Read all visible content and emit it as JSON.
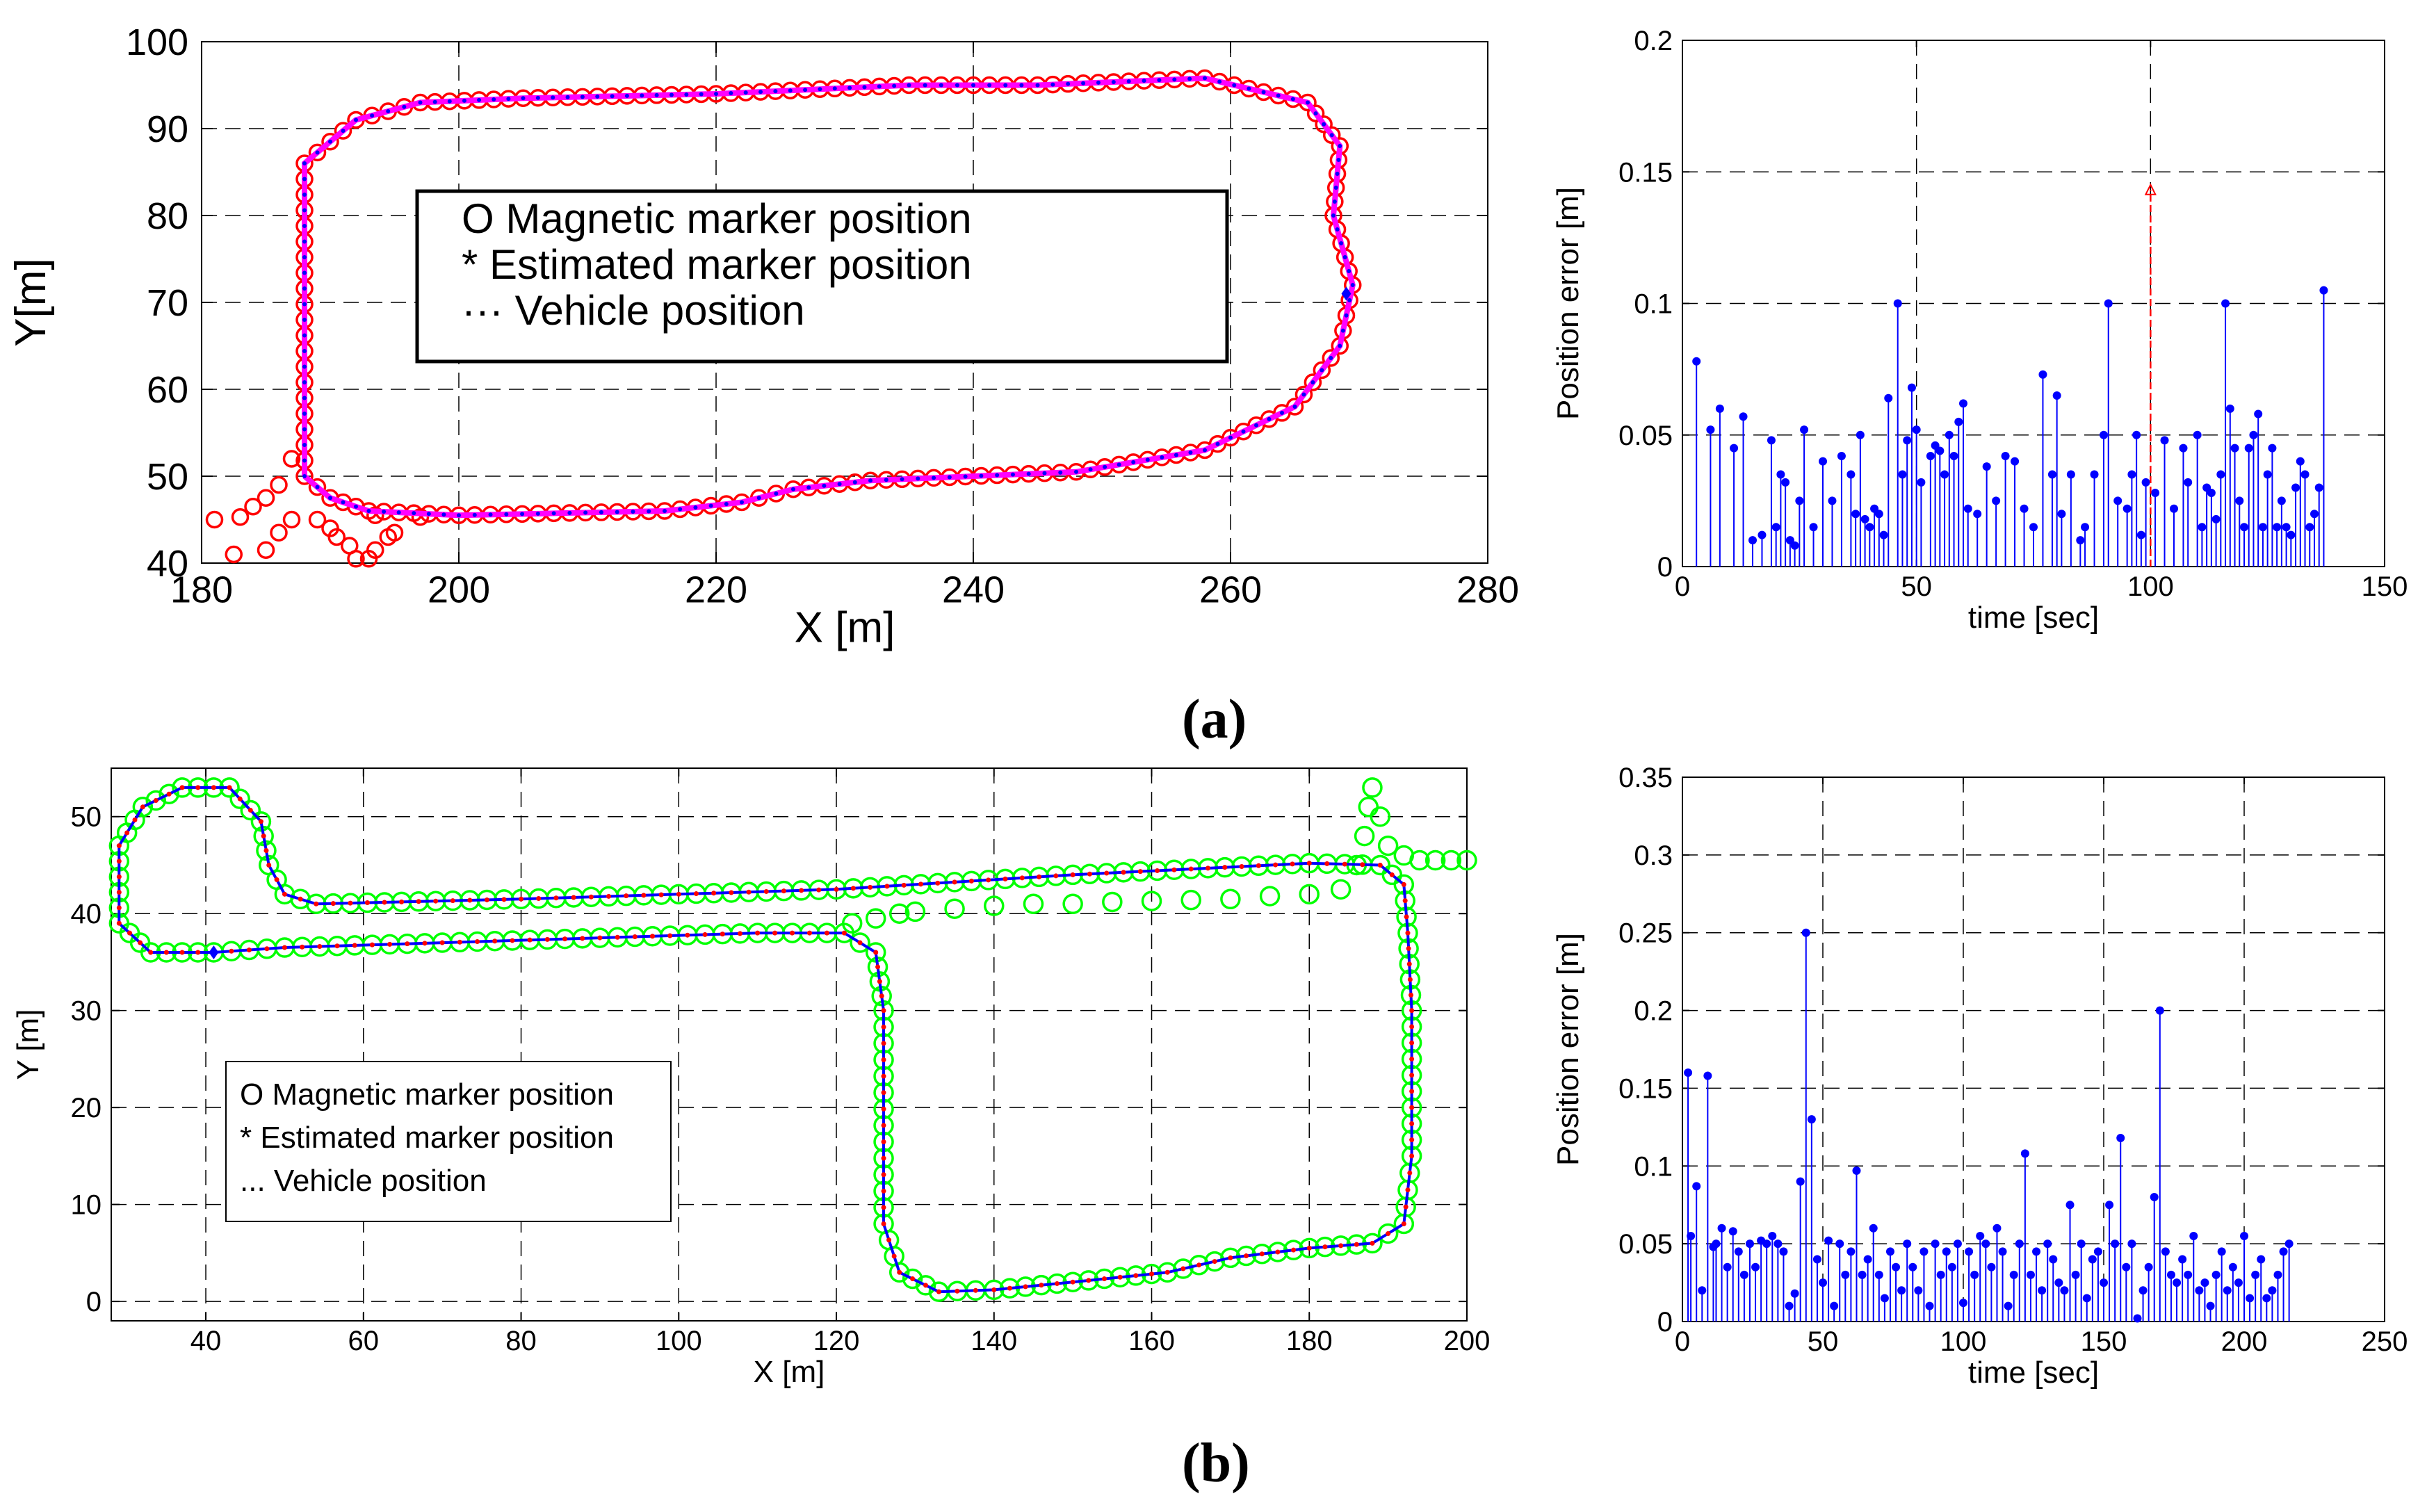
{
  "chart_data": [
    {
      "id": "a-track",
      "type": "scatter",
      "xlabel": "X [m]",
      "ylabel": "Y[m]",
      "xlim": [
        180,
        280
      ],
      "ylim": [
        40,
        100
      ],
      "xticks": [
        "180",
        "200",
        "220",
        "240",
        "260",
        "280"
      ],
      "yticks": [
        "40",
        "50",
        "60",
        "70",
        "80",
        "90",
        "100"
      ],
      "grid": true,
      "legend_position": "center",
      "legend": [
        "O   Magnetic marker position",
        "*   Estimated marker position",
        "··· Vehicle position"
      ],
      "track": [
        [
          188,
          50
        ],
        [
          188,
          86
        ],
        [
          192,
          91
        ],
        [
          197,
          93
        ],
        [
          205,
          93.5
        ],
        [
          220,
          94
        ],
        [
          235,
          95
        ],
        [
          245,
          95
        ],
        [
          258,
          95.8
        ],
        [
          266,
          93
        ],
        [
          268.5,
          88
        ],
        [
          268,
          80
        ],
        [
          269.5,
          72
        ],
        [
          268.5,
          65
        ],
        [
          265,
          58
        ],
        [
          258,
          53
        ],
        [
          248,
          50.5
        ],
        [
          232,
          49.5
        ],
        [
          226,
          48.5
        ],
        [
          222,
          47
        ],
        [
          216,
          46
        ],
        [
          200,
          45.5
        ],
        [
          193,
          46
        ],
        [
          190,
          47.5
        ],
        [
          188,
          50
        ]
      ],
      "spurious_markers": [
        [
          181,
          45
        ],
        [
          183,
          45.3
        ],
        [
          184,
          46.5
        ],
        [
          185,
          47.5
        ],
        [
          186,
          49
        ],
        [
          187,
          52
        ],
        [
          182.5,
          41
        ],
        [
          185,
          41.5
        ],
        [
          186,
          43.5
        ],
        [
          187,
          45
        ],
        [
          189,
          45
        ],
        [
          190,
          44
        ],
        [
          190.5,
          43
        ],
        [
          191.5,
          42
        ],
        [
          192,
          40.5
        ],
        [
          193,
          40.5
        ],
        [
          193.5,
          41.5
        ],
        [
          194.5,
          43
        ],
        [
          195,
          43.5
        ],
        [
          193.5,
          45.5
        ],
        [
          197,
          45.3
        ]
      ],
      "series_colors": {
        "magnetic": "#ff0000",
        "estimated": "#0000ff",
        "vehicle": "#ff00ff"
      }
    },
    {
      "id": "a-error",
      "type": "stem",
      "xlabel": "time [sec]",
      "ylabel": "Position error [m]",
      "xlim": [
        0,
        150
      ],
      "ylim": [
        0,
        0.2
      ],
      "xticks": [
        "0",
        "50",
        "100",
        "150"
      ],
      "yticks": [
        "0",
        "0.05",
        "0.1",
        "0.15",
        "0.2"
      ],
      "grid": true,
      "x": [
        3,
        6,
        8,
        11,
        13,
        15,
        17,
        19,
        20,
        21,
        22,
        23,
        24,
        25,
        26,
        28,
        30,
        32,
        34,
        36,
        37,
        38,
        39,
        40,
        41,
        42,
        43,
        44,
        46,
        47,
        48,
        49,
        50,
        51,
        53,
        54,
        55,
        56,
        57,
        58,
        59,
        60,
        61,
        63,
        65,
        67,
        69,
        71,
        73,
        75,
        77,
        79,
        80,
        81,
        83,
        85,
        86,
        88,
        90,
        91,
        93,
        95,
        96,
        97,
        98,
        99,
        101,
        103,
        105,
        107,
        108,
        110,
        111,
        112,
        113,
        114,
        115,
        116,
        117,
        118,
        119,
        120,
        121,
        122,
        123,
        124,
        125,
        126,
        127,
        128,
        129,
        130,
        131,
        132,
        133,
        134,
        135,
        136,
        137
      ],
      "values": [
        0.078,
        0.052,
        0.06,
        0.045,
        0.057,
        0.01,
        0.012,
        0.048,
        0.015,
        0.035,
        0.032,
        0.01,
        0.008,
        0.025,
        0.052,
        0.015,
        0.04,
        0.025,
        0.042,
        0.035,
        0.02,
        0.05,
        0.018,
        0.015,
        0.022,
        0.02,
        0.012,
        0.064,
        0.1,
        0.035,
        0.048,
        0.068,
        0.052,
        0.032,
        0.042,
        0.046,
        0.044,
        0.035,
        0.05,
        0.042,
        0.055,
        0.062,
        0.022,
        0.02,
        0.038,
        0.025,
        0.042,
        0.04,
        0.022,
        0.015,
        0.073,
        0.035,
        0.065,
        0.02,
        0.035,
        0.01,
        0.015,
        0.035,
        0.05,
        0.1,
        0.025,
        0.022,
        0.035,
        0.05,
        0.012,
        0.032,
        0.028,
        0.048,
        0.022,
        0.045,
        0.032,
        0.05,
        0.015,
        0.03,
        0.028,
        0.018,
        0.035,
        0.1,
        0.06,
        0.045,
        0.025,
        0.015,
        0.045,
        0.05,
        0.058,
        0.015,
        0.035,
        0.045,
        0.015,
        0.025,
        0.015,
        0.012,
        0.03,
        0.04,
        0.035,
        0.015,
        0.02,
        0.03,
        0.105
      ],
      "outlier": {
        "x": 100,
        "y": 0.143,
        "color": "#ff0000"
      },
      "series_colors": {
        "stem": "#0000ff"
      }
    },
    {
      "id": "b-track",
      "type": "scatter",
      "xlabel": "X [m]",
      "ylabel": "Y [m]",
      "xlim": [
        28,
        200
      ],
      "ylim": [
        -2,
        55
      ],
      "xticks": [
        "40",
        "60",
        "80",
        "100",
        "120",
        "140",
        "160",
        "180",
        "200"
      ],
      "yticks": [
        "0",
        "10",
        "20",
        "30",
        "40",
        "50"
      ],
      "grid": true,
      "legend_position": "lower-left",
      "legend": [
        "O  Magnetic marker position",
        " *  Estimated marker position",
        "...   Vehicle position"
      ],
      "track": [
        [
          41,
          36
        ],
        [
          33,
          36
        ],
        [
          29,
          39
        ],
        [
          29,
          47
        ],
        [
          32,
          51
        ],
        [
          37,
          53
        ],
        [
          43,
          53
        ],
        [
          47,
          49.5
        ],
        [
          48,
          45
        ],
        [
          50,
          42
        ],
        [
          54,
          41
        ],
        [
          80,
          41.5
        ],
        [
          100,
          42
        ],
        [
          120,
          42.5
        ],
        [
          150,
          44
        ],
        [
          180,
          45.2
        ],
        [
          189,
          45
        ],
        [
          192,
          43
        ],
        [
          192.5,
          38
        ],
        [
          193,
          30
        ],
        [
          193,
          15
        ],
        [
          192,
          8
        ],
        [
          188,
          6
        ],
        [
          180,
          5.5
        ],
        [
          170,
          4.5
        ],
        [
          162,
          3
        ],
        [
          150,
          2
        ],
        [
          140,
          1.2
        ],
        [
          133,
          1
        ],
        [
          128,
          3
        ],
        [
          126,
          8
        ],
        [
          126,
          30
        ],
        [
          125,
          36
        ],
        [
          121,
          38
        ],
        [
          110,
          38
        ],
        [
          90,
          37.5
        ],
        [
          70,
          37
        ],
        [
          50,
          36.5
        ],
        [
          41,
          36
        ]
      ],
      "spurious_markers": [
        [
          122,
          39
        ],
        [
          125,
          39.5
        ],
        [
          128,
          40
        ],
        [
          130,
          40.2
        ],
        [
          135,
          40.5
        ],
        [
          140,
          40.8
        ],
        [
          145,
          41
        ],
        [
          150,
          41
        ],
        [
          155,
          41.2
        ],
        [
          160,
          41.3
        ],
        [
          165,
          41.4
        ],
        [
          170,
          41.5
        ],
        [
          175,
          41.8
        ],
        [
          180,
          42
        ],
        [
          184,
          42.5
        ],
        [
          186,
          45
        ],
        [
          187,
          48
        ],
        [
          187.5,
          51
        ],
        [
          188,
          53
        ],
        [
          189,
          50
        ],
        [
          190,
          47
        ],
        [
          192,
          46
        ],
        [
          194,
          45.5
        ],
        [
          196,
          45.5
        ],
        [
          198,
          45.5
        ],
        [
          200,
          45.5
        ]
      ],
      "series_colors": {
        "magnetic": "#00ff00",
        "estimated": "#ff0000",
        "vehicle": "#0000ff"
      }
    },
    {
      "id": "b-error",
      "type": "stem",
      "xlabel": "time [sec]",
      "ylabel": "Position error [m]",
      "xlim": [
        0,
        250
      ],
      "ylim": [
        0,
        0.35
      ],
      "xticks": [
        "0",
        "50",
        "100",
        "150",
        "200",
        "250"
      ],
      "yticks": [
        "0",
        "0.05",
        "0.1",
        "0.15",
        "0.2",
        "0.25",
        "0.3",
        "0.35"
      ],
      "grid": true,
      "x": [
        2,
        3,
        5,
        7,
        9,
        11,
        12,
        14,
        16,
        18,
        20,
        22,
        24,
        26,
        28,
        30,
        32,
        34,
        36,
        38,
        40,
        42,
        44,
        46,
        48,
        50,
        52,
        54,
        56,
        58,
        60,
        62,
        64,
        66,
        68,
        70,
        72,
        74,
        76,
        78,
        80,
        82,
        84,
        86,
        88,
        90,
        92,
        94,
        96,
        98,
        100,
        102,
        104,
        106,
        108,
        110,
        112,
        114,
        116,
        118,
        120,
        122,
        124,
        126,
        128,
        130,
        132,
        134,
        136,
        138,
        140,
        142,
        144,
        146,
        148,
        150,
        152,
        154,
        156,
        158,
        160,
        162,
        164,
        166,
        168,
        170,
        172,
        174,
        176,
        178,
        180,
        182,
        184,
        186,
        188,
        190,
        192,
        194,
        196,
        198,
        200,
        202,
        204,
        206,
        208,
        210,
        212,
        214,
        216
      ],
      "values": [
        0.16,
        0.055,
        0.087,
        0.02,
        0.158,
        0.048,
        0.05,
        0.06,
        0.035,
        0.058,
        0.045,
        0.03,
        0.05,
        0.035,
        0.052,
        0.05,
        0.055,
        0.05,
        0.045,
        0.01,
        0.018,
        0.09,
        0.25,
        0.13,
        0.04,
        0.025,
        0.052,
        0.01,
        0.05,
        0.03,
        0.045,
        0.097,
        0.03,
        0.04,
        0.06,
        0.03,
        0.015,
        0.045,
        0.035,
        0.02,
        0.05,
        0.035,
        0.02,
        0.045,
        0.01,
        0.05,
        0.03,
        0.045,
        0.035,
        0.05,
        0.012,
        0.045,
        0.03,
        0.055,
        0.05,
        0.035,
        0.06,
        0.045,
        0.01,
        0.03,
        0.05,
        0.108,
        0.03,
        0.045,
        0.02,
        0.05,
        0.04,
        0.025,
        0.02,
        0.075,
        0.03,
        0.05,
        0.015,
        0.04,
        0.045,
        0.025,
        0.075,
        0.05,
        0.118,
        0.035,
        0.05,
        0.002,
        0.02,
        0.035,
        0.08,
        0.2,
        0.045,
        0.03,
        0.025,
        0.04,
        0.03,
        0.055,
        0.02,
        0.025,
        0.01,
        0.03,
        0.045,
        0.02,
        0.035,
        0.025,
        0.055,
        0.015,
        0.03,
        0.04,
        0.015,
        0.02,
        0.03,
        0.045,
        0.05
      ],
      "series_colors": {
        "stem": "#0000ff"
      }
    }
  ],
  "panel_labels": [
    "(a)",
    "(b)"
  ]
}
